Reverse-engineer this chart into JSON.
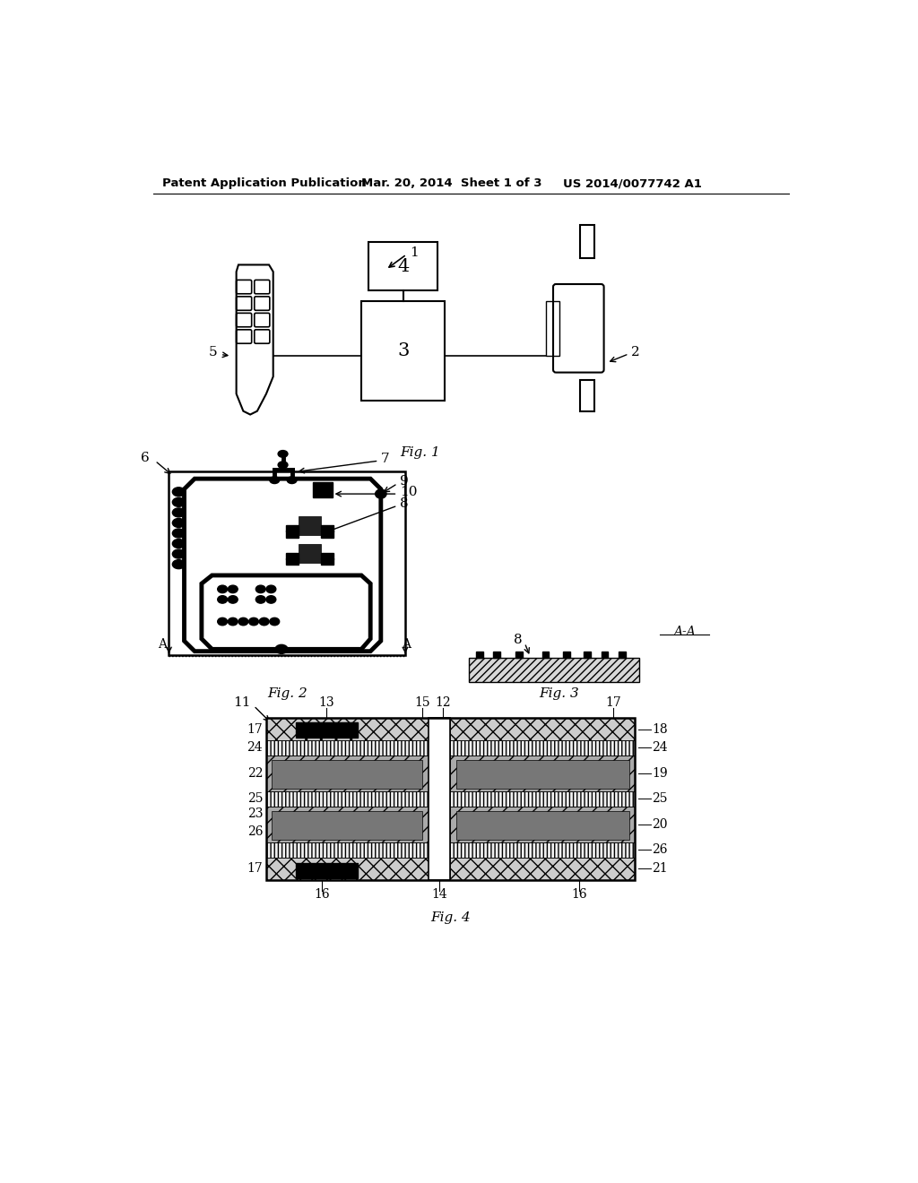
{
  "header_left": "Patent Application Publication",
  "header_mid": "Mar. 20, 2014  Sheet 1 of 3",
  "header_right": "US 2014/0077742 A1",
  "bg_color": "#ffffff",
  "lc": "#000000",
  "fig1_label": "Fig. 1",
  "fig2_label": "Fig. 2",
  "fig3_label": "Fig. 3",
  "fig4_label": "Fig. 4",
  "section_label": "A-A"
}
